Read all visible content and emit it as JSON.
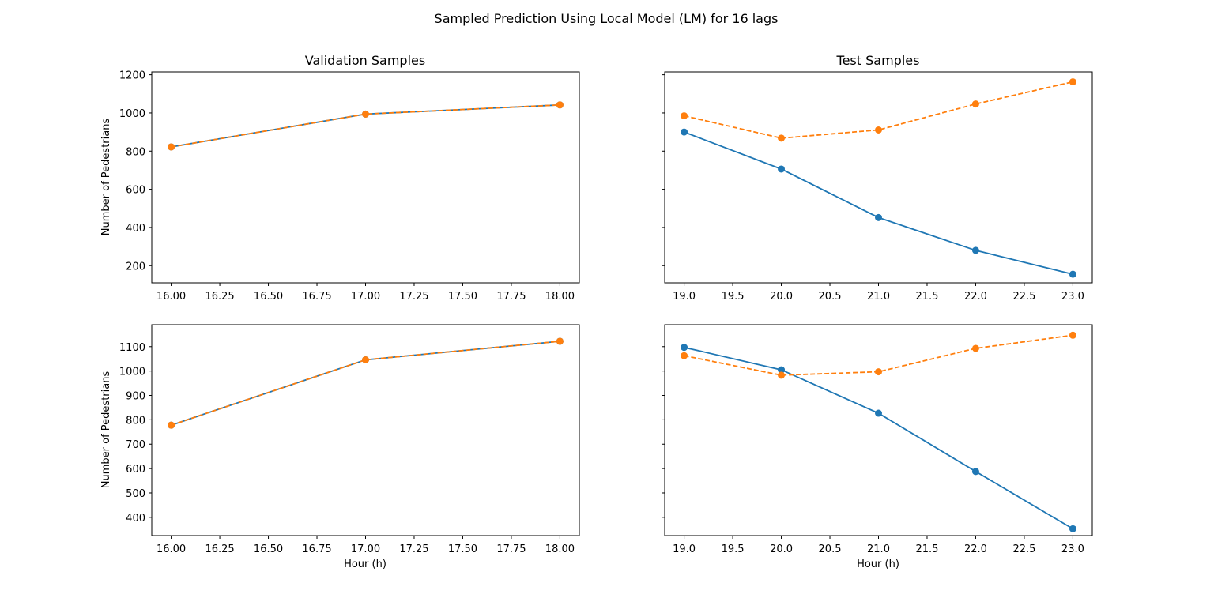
{
  "chart_data": {
    "suptitle": "Sampled Prediction Using Local Model (LM) for 16 lags",
    "colors": {
      "actual": "#1f77b4",
      "predicted": "#ff7f0e"
    },
    "subplots": [
      {
        "type": "line",
        "title": "Validation Samples",
        "xlabel": "",
        "ylabel": "Number of Pedestrians",
        "xlim": [
          15.9,
          18.1
        ],
        "ylim": [
          110,
          1215
        ],
        "xticks": [
          16.0,
          16.25,
          16.5,
          16.75,
          17.0,
          17.25,
          17.5,
          17.75,
          18.0
        ],
        "xtick_labels": [
          "16.00",
          "16.25",
          "16.50",
          "16.75",
          "17.00",
          "17.25",
          "17.50",
          "17.75",
          "18.00"
        ],
        "yticks": [
          200,
          400,
          600,
          800,
          1000,
          1200
        ],
        "ytick_labels": [
          "200",
          "400",
          "600",
          "800",
          "1000",
          "1200"
        ],
        "series": [
          {
            "style": "solid",
            "color": "#1f77b4",
            "x": [
              16,
              17,
              18
            ],
            "y": [
              822,
              994,
              1042
            ]
          },
          {
            "style": "dashed",
            "color": "#ff7f0e",
            "x": [
              16,
              17,
              18
            ],
            "y": [
              822,
              994,
              1042
            ]
          }
        ]
      },
      {
        "type": "line",
        "title": "Test Samples",
        "xlabel": "",
        "ylabel": "",
        "xlim": [
          18.8,
          23.2
        ],
        "ylim": [
          110,
          1215
        ],
        "xticks": [
          19.0,
          19.5,
          20.0,
          20.5,
          21.0,
          21.5,
          22.0,
          22.5,
          23.0
        ],
        "xtick_labels": [
          "19.0",
          "19.5",
          "20.0",
          "20.5",
          "21.0",
          "21.5",
          "22.0",
          "22.5",
          "23.0"
        ],
        "yticks": [
          200,
          400,
          600,
          800,
          1000,
          1200
        ],
        "ytick_labels": [],
        "series": [
          {
            "style": "solid",
            "color": "#1f77b4",
            "x": [
              19,
              20,
              21,
              22,
              23
            ],
            "y": [
              900,
              706,
              452,
              280,
              155
            ]
          },
          {
            "style": "dashed",
            "color": "#ff7f0e",
            "x": [
              19,
              20,
              21,
              22,
              23
            ],
            "y": [
              985,
              868,
              911,
              1047,
              1163
            ]
          }
        ]
      },
      {
        "type": "line",
        "title": "",
        "xlabel": "Hour (h)",
        "ylabel": "Number of Pedestrians",
        "xlim": [
          15.9,
          18.1
        ],
        "ylim": [
          325,
          1190
        ],
        "xticks": [
          16.0,
          16.25,
          16.5,
          16.75,
          17.0,
          17.25,
          17.5,
          17.75,
          18.0
        ],
        "xtick_labels": [
          "16.00",
          "16.25",
          "16.50",
          "16.75",
          "17.00",
          "17.25",
          "17.50",
          "17.75",
          "18.00"
        ],
        "yticks": [
          400,
          500,
          600,
          700,
          800,
          900,
          1000,
          1100
        ],
        "ytick_labels": [
          "400",
          "500",
          "600",
          "700",
          "800",
          "900",
          "1000",
          "1100"
        ],
        "series": [
          {
            "style": "solid",
            "color": "#1f77b4",
            "x": [
              16,
              17,
              18
            ],
            "y": [
              778,
              1046,
              1122
            ]
          },
          {
            "style": "dashed",
            "color": "#ff7f0e",
            "x": [
              16,
              17,
              18
            ],
            "y": [
              778,
              1046,
              1122
            ]
          }
        ]
      },
      {
        "type": "line",
        "title": "",
        "xlabel": "Hour (h)",
        "ylabel": "",
        "xlim": [
          18.8,
          23.2
        ],
        "ylim": [
          325,
          1190
        ],
        "xticks": [
          19.0,
          19.5,
          20.0,
          20.5,
          21.0,
          21.5,
          22.0,
          22.5,
          23.0
        ],
        "xtick_labels": [
          "19.0",
          "19.5",
          "20.0",
          "20.5",
          "21.0",
          "21.5",
          "22.0",
          "22.5",
          "23.0"
        ],
        "yticks": [
          400,
          500,
          600,
          700,
          800,
          900,
          1000,
          1100
        ],
        "ytick_labels": [],
        "series": [
          {
            "style": "solid",
            "color": "#1f77b4",
            "x": [
              19,
              20,
              21,
              22,
              23
            ],
            "y": [
              1097,
              1005,
              827,
              588,
              353
            ]
          },
          {
            "style": "dashed",
            "color": "#ff7f0e",
            "x": [
              19,
              20,
              21,
              22,
              23
            ],
            "y": [
              1063,
              983,
              997,
              1093,
              1147
            ]
          }
        ]
      }
    ]
  }
}
